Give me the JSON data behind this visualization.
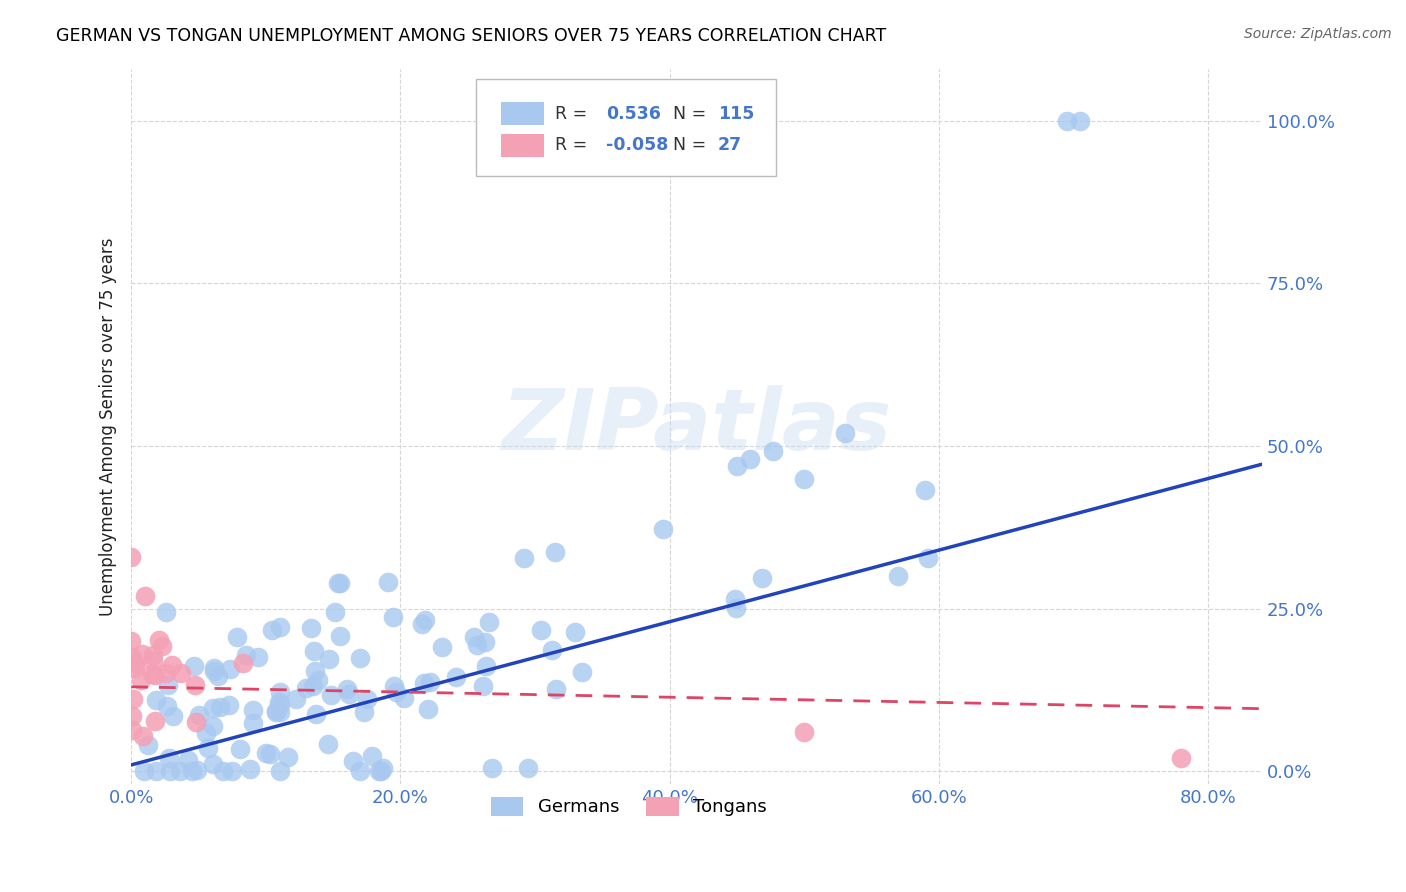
{
  "title": "GERMAN VS TONGAN UNEMPLOYMENT AMONG SENIORS OVER 75 YEARS CORRELATION CHART",
  "source": "Source: ZipAtlas.com",
  "ylabel": "Unemployment Among Seniors over 75 years",
  "xlabel_ticks": [
    "0.0%",
    "20.0%",
    "40.0%",
    "60.0%",
    "80.0%"
  ],
  "ylabel_ticks": [
    "0.0%",
    "25.0%",
    "50.0%",
    "75.0%",
    "100.0%"
  ],
  "xlim": [
    0.0,
    0.84
  ],
  "ylim": [
    -0.02,
    1.08
  ],
  "german_R": 0.536,
  "german_N": 115,
  "tongan_R": -0.058,
  "tongan_N": 27,
  "german_color": "#a8c8f0",
  "tongan_color": "#f4a0b5",
  "german_line_color": "#2244bb",
  "tongan_line_color": "#dd4466",
  "background_color": "#ffffff",
  "grid_color": "#cccccc",
  "axis_label_color": "#4477cc",
  "title_color": "#000000"
}
